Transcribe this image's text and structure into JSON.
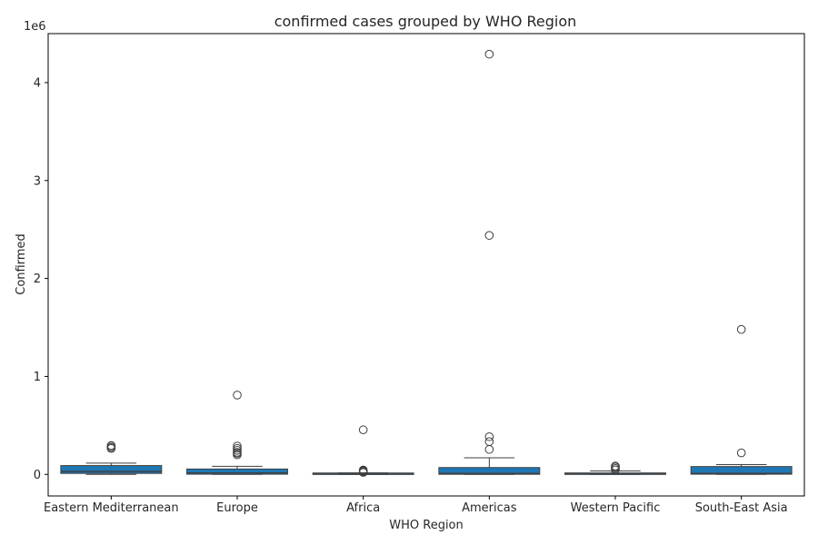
{
  "chart_data": {
    "type": "box",
    "title": "confirmed cases grouped by WHO Region",
    "xlabel": "WHO Region",
    "ylabel": "Confirmed",
    "offset_label": "1e6",
    "ylim": [
      -220000,
      4500000
    ],
    "yticks": [
      0,
      1000000,
      2000000,
      3000000,
      4000000
    ],
    "ytick_labels": [
      "0",
      "1",
      "2",
      "3",
      "4"
    ],
    "box_color": "#1f77b4",
    "grid": false,
    "categories": [
      "Eastern Mediterranean",
      "Europe",
      "Africa",
      "Americas",
      "Western Pacific",
      "South-East Asia"
    ],
    "boxes": [
      {
        "name": "Eastern Mediterranean",
        "whislo": 0,
        "q1": 10000,
        "med": 30000,
        "q3": 90000,
        "whishi": 115000,
        "fliers": [
          265000,
          275000,
          290000,
          295000
        ]
      },
      {
        "name": "Europe",
        "whislo": 0,
        "q1": 2000,
        "med": 15000,
        "q3": 55000,
        "whishi": 82000,
        "fliers": [
          200000,
          215000,
          225000,
          245000,
          265000,
          290000,
          810000
        ]
      },
      {
        "name": "Africa",
        "whislo": 0,
        "q1": 500,
        "med": 2000,
        "q3": 6000,
        "whishi": 15000,
        "fliers": [
          20000,
          25000,
          30000,
          35000,
          40000,
          45000,
          455000
        ]
      },
      {
        "name": "Americas",
        "whislo": 0,
        "q1": 1000,
        "med": 10000,
        "q3": 70000,
        "whishi": 170000,
        "fliers": [
          255000,
          335000,
          385000,
          2440000,
          4290000
        ]
      },
      {
        "name": "Western Pacific",
        "whislo": 0,
        "q1": 200,
        "med": 3000,
        "q3": 15000,
        "whishi": 35000,
        "fliers": [
          45000,
          60000,
          75000,
          85000
        ]
      },
      {
        "name": "South-East Asia",
        "whislo": 0,
        "q1": 2000,
        "med": 10000,
        "q3": 80000,
        "whishi": 100000,
        "fliers": [
          220000,
          1480000
        ]
      }
    ]
  }
}
